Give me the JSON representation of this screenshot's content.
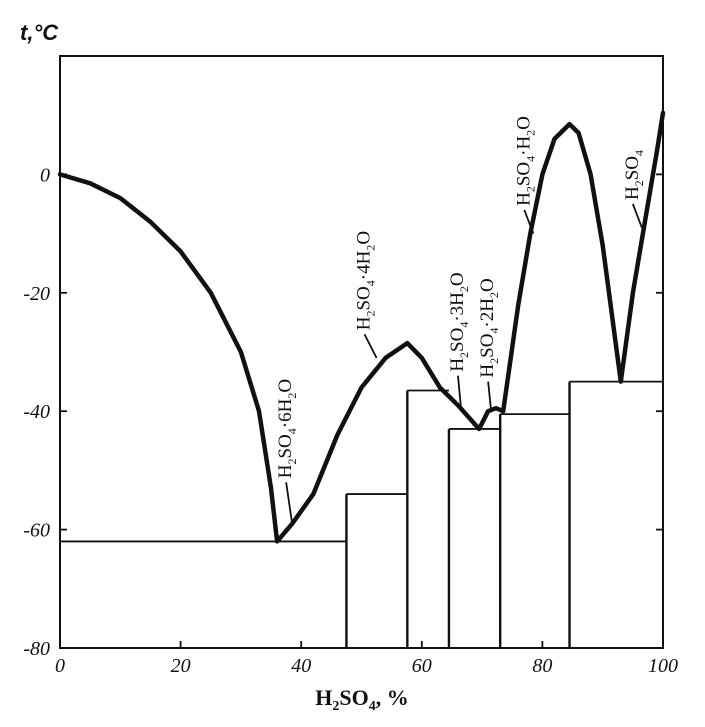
{
  "chart_data": {
    "type": "line",
    "title": "",
    "ylabel": "t,°C",
    "xlabel_parts": [
      "H",
      "2",
      "SO",
      "4",
      ", %"
    ],
    "xlim": [
      0,
      100
    ],
    "ylim": [
      -80,
      20
    ],
    "x_ticks": [
      {
        "value": 0,
        "label": "0"
      },
      {
        "value": 20,
        "label": "20"
      },
      {
        "value": 40,
        "label": "40"
      },
      {
        "value": 60,
        "label": "60"
      },
      {
        "value": 80,
        "label": "80"
      },
      {
        "value": 100,
        "label": "100"
      }
    ],
    "y_ticks": [
      {
        "value": 0,
        "label": "0"
      },
      {
        "value": -20,
        "label": "-20"
      },
      {
        "value": -40,
        "label": "-40"
      },
      {
        "value": -60,
        "label": "-60"
      },
      {
        "value": -80,
        "label": "-80"
      }
    ],
    "liquidus": [
      [
        0,
        0
      ],
      [
        5,
        -1.5
      ],
      [
        10,
        -4
      ],
      [
        15,
        -8
      ],
      [
        20,
        -13
      ],
      [
        25,
        -20
      ],
      [
        30,
        -30
      ],
      [
        33,
        -40
      ],
      [
        35,
        -53
      ],
      [
        36,
        -62
      ],
      [
        38.5,
        -59
      ],
      [
        42,
        -54
      ],
      [
        46,
        -44
      ],
      [
        50,
        -36
      ],
      [
        54,
        -31
      ],
      [
        57.6,
        -28.5
      ],
      [
        60,
        -31
      ],
      [
        63,
        -36
      ],
      [
        66,
        -39
      ],
      [
        69.5,
        -43
      ],
      [
        71,
        -40
      ],
      [
        72.3,
        -39.5
      ],
      [
        73.5,
        -40
      ],
      [
        76,
        -22
      ],
      [
        78,
        -10
      ],
      [
        80,
        0
      ],
      [
        82,
        6
      ],
      [
        84.5,
        8.5
      ],
      [
        86,
        7
      ],
      [
        88,
        0
      ],
      [
        90,
        -12
      ],
      [
        93,
        -35
      ],
      [
        95,
        -20
      ],
      [
        97,
        -8
      ],
      [
        99,
        4
      ],
      [
        100,
        10.4
      ]
    ],
    "horizontal_lines": [
      {
        "y": -62,
        "x1": 0,
        "x2": 47.5
      },
      {
        "y": -54,
        "x1": 47.5,
        "x2": 57.6
      },
      {
        "y": -36.5,
        "x1": 57.6,
        "x2": 64.5
      },
      {
        "y": -43,
        "x1": 64.5,
        "x2": 73
      },
      {
        "y": -40.5,
        "x1": 73,
        "x2": 84.5
      },
      {
        "y": -35,
        "x1": 84.5,
        "x2": 100
      }
    ],
    "vertical_lines": [
      47.5,
      57.6,
      64.5,
      73,
      84.5
    ],
    "annotations": [
      {
        "parts": [
          "H",
          "2",
          "SO",
          "4",
          "·6H",
          "2",
          "O"
        ],
        "point": [
          38.5,
          -59
        ],
        "leader_from": [
          37.5,
          -52
        ]
      },
      {
        "parts": [
          "H",
          "2",
          "SO",
          "4",
          "·4H",
          "2",
          "O"
        ],
        "point": [
          52.5,
          -31
        ],
        "leader_from": [
          50.5,
          -27
        ]
      },
      {
        "parts": [
          "H",
          "2",
          "SO",
          "4",
          "·3H",
          "2",
          "O"
        ],
        "point": [
          66.5,
          -39.5
        ],
        "leader_from": [
          66,
          -34
        ]
      },
      {
        "parts": [
          "H",
          "2",
          "SO",
          "4",
          "·2H",
          "2",
          "O"
        ],
        "point": [
          71.5,
          -40
        ],
        "leader_from": [
          71,
          -35
        ]
      },
      {
        "parts": [
          "H",
          "2",
          "SO",
          "4",
          "·H",
          "2",
          "O"
        ],
        "point": [
          78.5,
          -10
        ],
        "leader_from": [
          77,
          -6
        ]
      },
      {
        "parts": [
          "H",
          "2",
          "SO",
          "4"
        ],
        "point": [
          96.5,
          -9
        ],
        "leader_from": [
          95,
          -5
        ]
      }
    ]
  }
}
